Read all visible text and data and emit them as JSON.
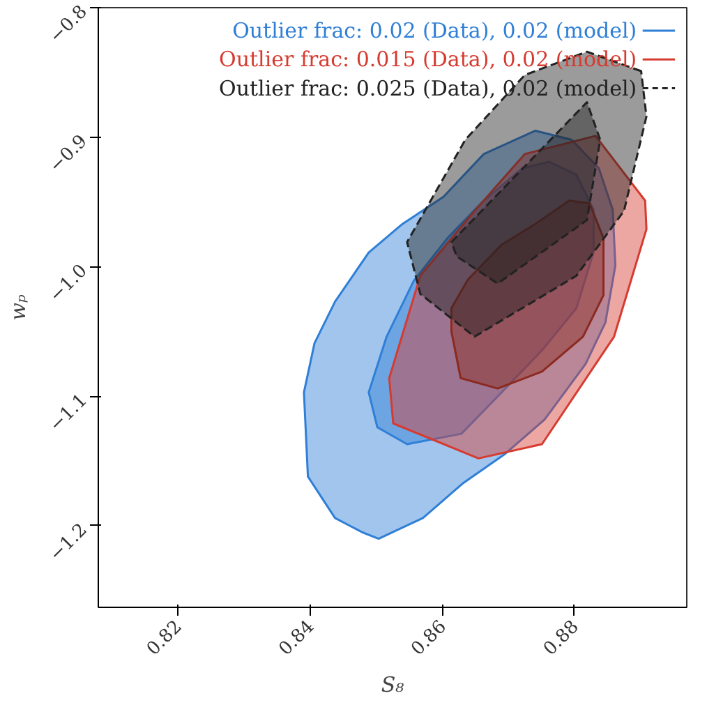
{
  "chart_data": {
    "type": "area",
    "xlabel": "S₈",
    "ylabel": "wₚ",
    "xlim": [
      0.808,
      0.897
    ],
    "ylim": [
      -1.263,
      -0.8
    ],
    "xticks": [
      0.82,
      0.84,
      0.86,
      0.88
    ],
    "yticks": [
      -0.8,
      -0.9,
      {
        "value": -1,
        "label": "−1.0"
      },
      -1.1,
      -1.2
    ],
    "grid": false,
    "legend": "top",
    "line_style": "solid",
    "series": [
      {
        "name": "Outlier frac: 0.02 (Data), 0.02 (model)",
        "color": "#2f7fd6",
        "x": [
          0.8741,
          0.8796,
          0.8837,
          0.8858,
          0.8862,
          0.8847,
          0.8817,
          0.8755,
          0.8694,
          0.8632,
          0.8571,
          0.8504,
          0.8479,
          0.8438,
          0.8397,
          0.8391,
          0.8407,
          0.8438,
          0.8489,
          0.854,
          0.8602,
          0.8663
        ],
        "values": [
          -0.895,
          -0.902,
          -0.924,
          -0.956,
          -0.999,
          -1.043,
          -1.075,
          -1.118,
          -1.145,
          -1.167,
          -1.194,
          -1.21,
          -1.205,
          -1.194,
          -1.162,
          -1.097,
          -1.059,
          -1.027,
          -0.989,
          -0.967,
          -0.946,
          -0.913
        ]
      },
      {
        "color": "#2f7fd6",
        "x": [
          0.8489,
          0.8516,
          0.8557,
          0.8608,
          0.8659,
          0.8721,
          0.8762,
          0.8803,
          0.8829,
          0.8829,
          0.8803,
          0.8752,
          0.869,
          0.8629,
          0.8547,
          0.8502
        ],
        "values": [
          -1.097,
          -1.054,
          -1.011,
          -0.978,
          -0.951,
          -0.924,
          -0.919,
          -0.929,
          -0.956,
          -0.989,
          -1.032,
          -1.064,
          -1.097,
          -1.129,
          -1.137,
          -1.124
        ]
      },
      {
        "name": "Outlier frac: 0.015 (Data), 0.02 (model)",
        "color": "#d63b30",
        "x": [
          0.8832,
          0.8907,
          0.8909,
          0.886,
          0.8751,
          0.8655,
          0.8526,
          0.852,
          0.8567,
          0.8649,
          0.8725
        ],
        "values": [
          -0.899,
          -0.949,
          -0.971,
          -1.054,
          -1.137,
          -1.148,
          -1.121,
          -1.086,
          -1.007,
          -0.957,
          -0.913
        ]
      },
      {
        "color": "#8b2a20",
        "x": [
          0.8614,
          0.8628,
          0.8684,
          0.8751,
          0.8813,
          0.8844,
          0.8844,
          0.8823,
          0.8792,
          0.8741,
          0.869,
          0.8639,
          0.8614
        ],
        "values": [
          -1.05,
          -1.086,
          -1.094,
          -1.081,
          -1.054,
          -1.022,
          -0.978,
          -0.951,
          -0.949,
          -0.967,
          -0.983,
          -1.01,
          -1.032
        ]
      },
      {
        "name": "Outlier frac: 0.025 (Data), 0.02 (model)",
        "color": "#222222",
        "line_style": "dashed",
        "x": [
          0.8901,
          0.8819,
          0.8725,
          0.8635,
          0.8547,
          0.8567,
          0.8649,
          0.8803,
          0.8875,
          0.8909
        ],
        "values": [
          -0.849,
          -0.834,
          -0.852,
          -0.902,
          -0.981,
          -1.021,
          -1.054,
          -1.007,
          -0.957,
          -0.884
        ]
      },
      {
        "color": "#222222",
        "line_style": "dashed",
        "x": [
          0.8614,
          0.8819,
          0.8839,
          0.8819,
          0.8684,
          0.8622
        ],
        "values": [
          -0.981,
          -0.873,
          -0.902,
          -0.964,
          -1.013,
          -0.992
        ]
      }
    ]
  }
}
